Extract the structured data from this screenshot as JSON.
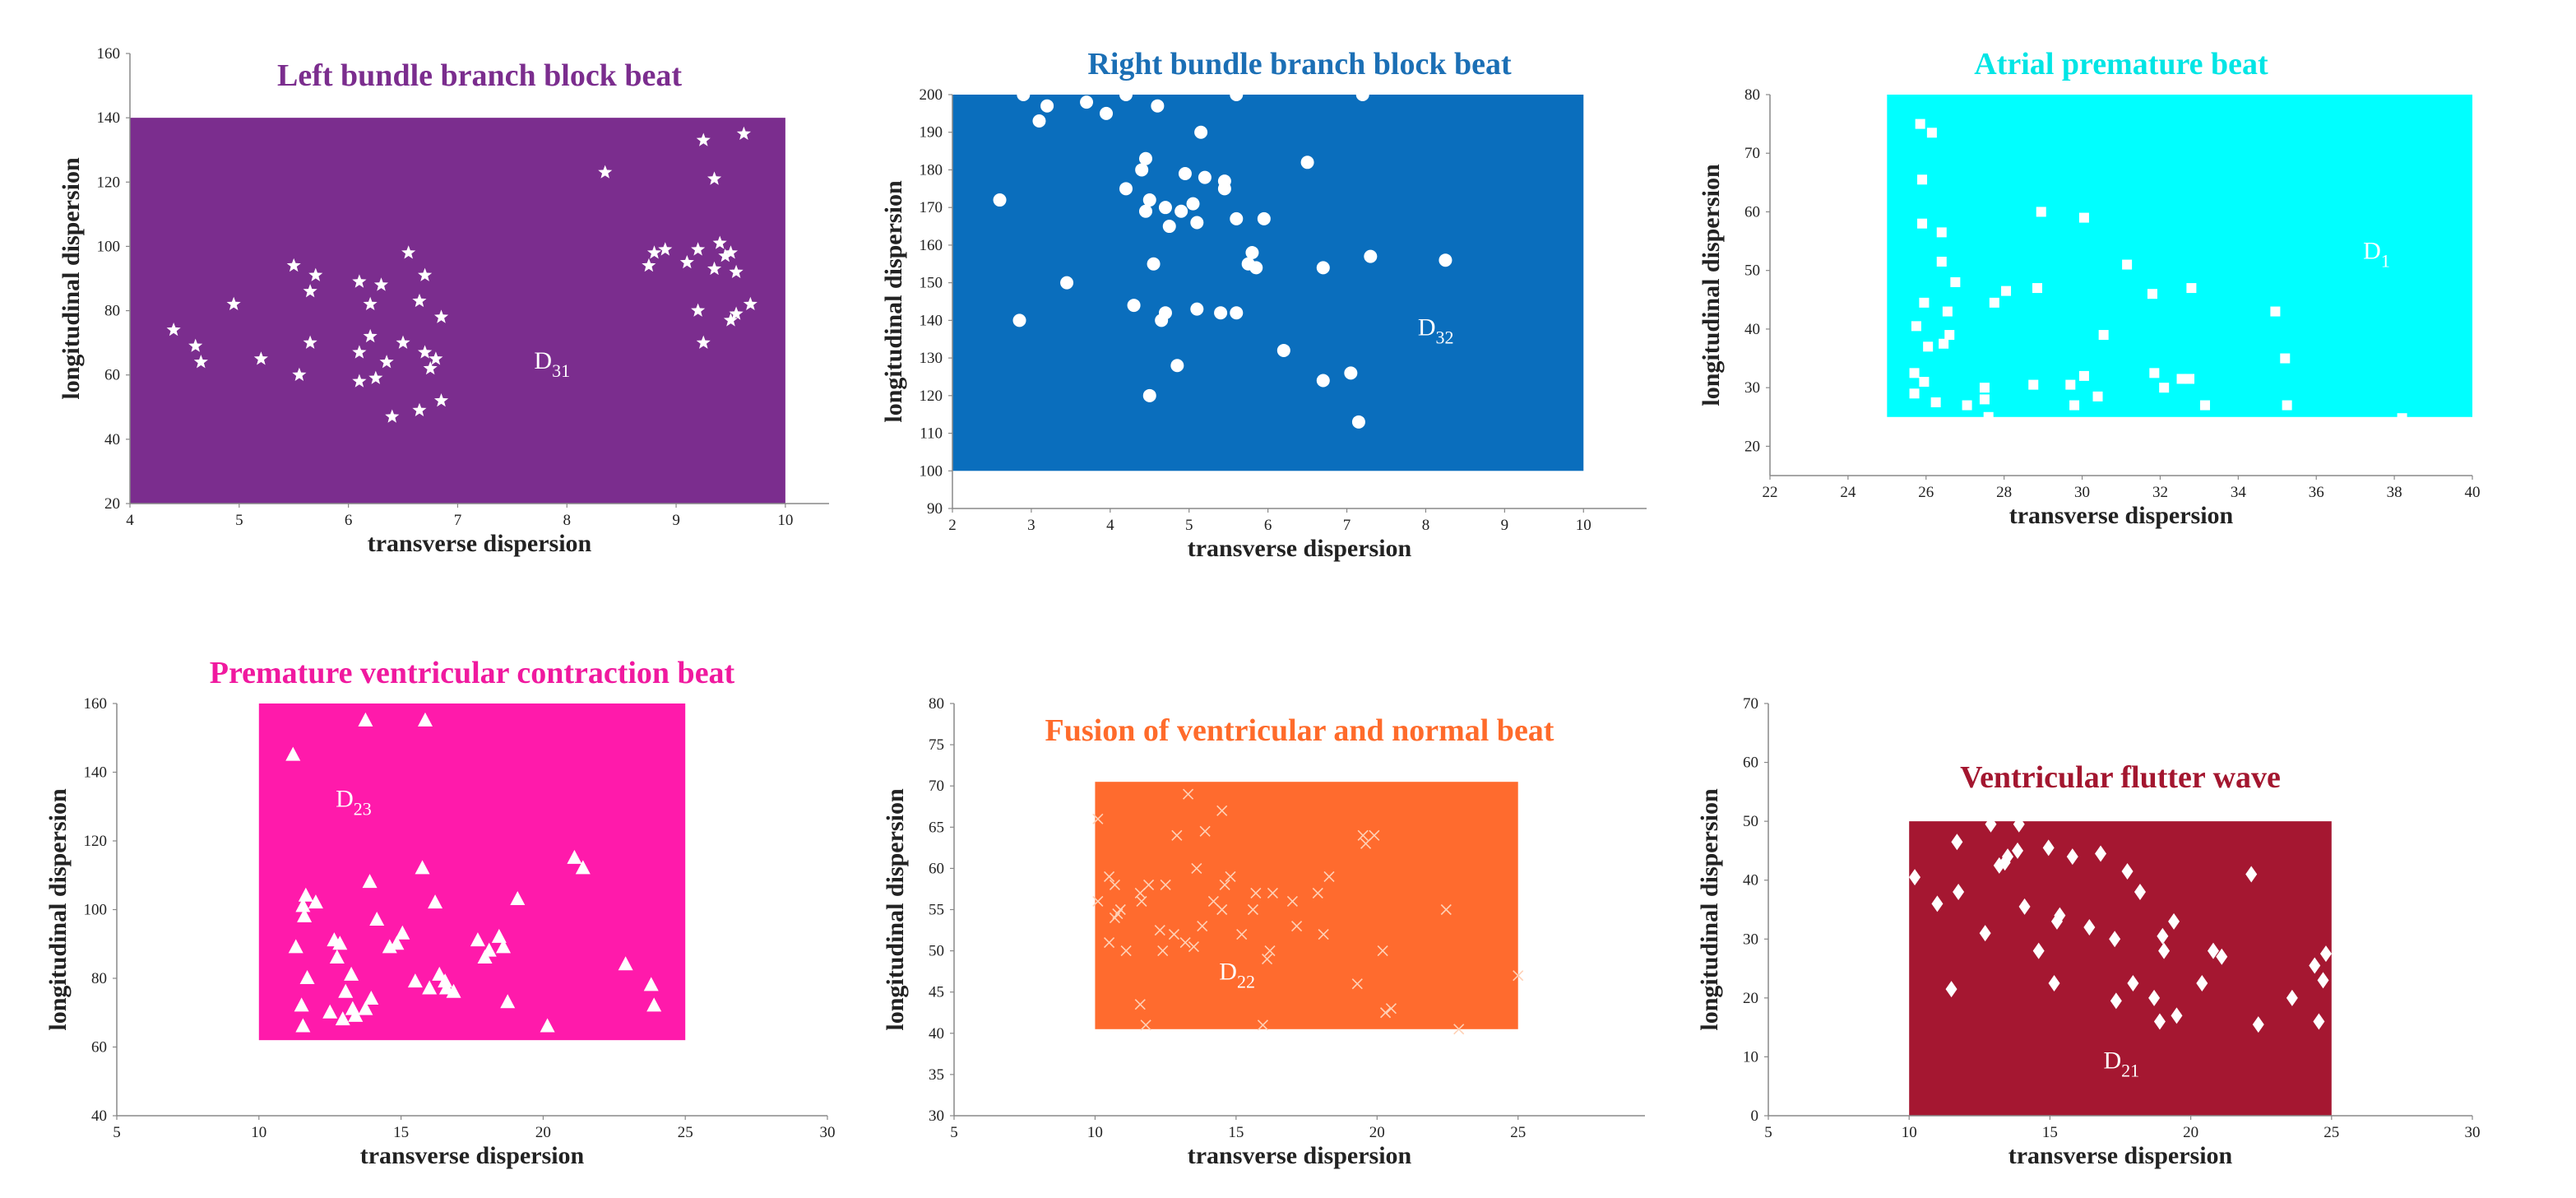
{
  "chart_data": [
    {
      "type": "scatter",
      "title": "Left bundle branch block beat",
      "title_color": "#7B2D8E",
      "xlabel": "transverse dispersion",
      "ylabel": "longitudinal dispersion",
      "xlim": [
        4,
        10.4
      ],
      "ylim": [
        20,
        160
      ],
      "xticks": [
        4,
        5,
        6,
        7,
        8,
        9,
        10
      ],
      "yticks": [
        20,
        40,
        60,
        80,
        100,
        120,
        140,
        160
      ],
      "region": {
        "x": [
          4,
          10
        ],
        "y": [
          20,
          140
        ],
        "fill": "#7B2D8E",
        "label_main": "D",
        "label_sub": "31",
        "label_pos": [
          7.7,
          62
        ]
      },
      "marker": "star",
      "points": [
        [
          4.4,
          74
        ],
        [
          4.6,
          69
        ],
        [
          4.65,
          64
        ],
        [
          4.95,
          82
        ],
        [
          5.2,
          65
        ],
        [
          5.5,
          94
        ],
        [
          5.55,
          60
        ],
        [
          5.65,
          70
        ],
        [
          5.65,
          86
        ],
        [
          5.7,
          91
        ],
        [
          6.1,
          89
        ],
        [
          6.1,
          67
        ],
        [
          6.1,
          58
        ],
        [
          6.2,
          82
        ],
        [
          6.2,
          72
        ],
        [
          6.25,
          59
        ],
        [
          6.3,
          88
        ],
        [
          6.35,
          64
        ],
        [
          6.4,
          47
        ],
        [
          6.5,
          70
        ],
        [
          6.55,
          98
        ],
        [
          6.65,
          83
        ],
        [
          6.65,
          49
        ],
        [
          6.7,
          91
        ],
        [
          6.7,
          67
        ],
        [
          6.75,
          62
        ],
        [
          6.8,
          65
        ],
        [
          6.85,
          78
        ],
        [
          6.85,
          52
        ],
        [
          8.35,
          123
        ],
        [
          8.75,
          94
        ],
        [
          8.8,
          98
        ],
        [
          8.9,
          99
        ],
        [
          9.1,
          95
        ],
        [
          9.2,
          99
        ],
        [
          9.2,
          80
        ],
        [
          9.25,
          70
        ],
        [
          9.25,
          133
        ],
        [
          9.35,
          121
        ],
        [
          9.35,
          93
        ],
        [
          9.4,
          101
        ],
        [
          9.45,
          97
        ],
        [
          9.5,
          98
        ],
        [
          9.5,
          77
        ],
        [
          9.55,
          92
        ],
        [
          9.55,
          79
        ],
        [
          9.62,
          135
        ],
        [
          9.68,
          82
        ]
      ]
    },
    {
      "type": "scatter",
      "title": "Right bundle branch block beat",
      "title_color": "#1B6FB5",
      "xlabel": "transverse dispersion",
      "ylabel": "longitudinal dispersion",
      "xlim": [
        2,
        10.8
      ],
      "ylim": [
        90,
        200
      ],
      "xticks": [
        2,
        3,
        4,
        5,
        6,
        7,
        8,
        9,
        10
      ],
      "yticks": [
        90,
        100,
        110,
        120,
        130,
        140,
        150,
        160,
        170,
        180,
        190,
        200
      ],
      "region": {
        "x": [
          2,
          10
        ],
        "y": [
          100,
          200
        ],
        "fill": "#0A6EBD",
        "label_main": "D",
        "label_sub": "32",
        "label_pos": [
          7.9,
          136
        ]
      },
      "marker": "circle",
      "points": [
        [
          2.6,
          172
        ],
        [
          2.85,
          140
        ],
        [
          2.9,
          200
        ],
        [
          3.1,
          193
        ],
        [
          3.2,
          197
        ],
        [
          3.45,
          150
        ],
        [
          3.7,
          198
        ],
        [
          3.95,
          195
        ],
        [
          4.2,
          175
        ],
        [
          4.2,
          200
        ],
        [
          4.3,
          144
        ],
        [
          4.4,
          180
        ],
        [
          4.45,
          183
        ],
        [
          4.45,
          169
        ],
        [
          4.5,
          172
        ],
        [
          4.5,
          120
        ],
        [
          4.55,
          155
        ],
        [
          4.6,
          197
        ],
        [
          4.65,
          140
        ],
        [
          4.7,
          170
        ],
        [
          4.7,
          142
        ],
        [
          4.75,
          165
        ],
        [
          4.85,
          128
        ],
        [
          4.9,
          169
        ],
        [
          4.95,
          179
        ],
        [
          5.05,
          171
        ],
        [
          5.1,
          166
        ],
        [
          5.1,
          143
        ],
        [
          5.15,
          190
        ],
        [
          5.2,
          178
        ],
        [
          5.4,
          142
        ],
        [
          5.45,
          177
        ],
        [
          5.45,
          175
        ],
        [
          5.6,
          142
        ],
        [
          5.6,
          167
        ],
        [
          5.6,
          200
        ],
        [
          5.75,
          155
        ],
        [
          5.8,
          158
        ],
        [
          5.85,
          154
        ],
        [
          5.95,
          167
        ],
        [
          6.2,
          132
        ],
        [
          6.5,
          182
        ],
        [
          6.7,
          154
        ],
        [
          6.7,
          124
        ],
        [
          7.05,
          126
        ],
        [
          7.15,
          113
        ],
        [
          7.2,
          200
        ],
        [
          7.3,
          157
        ],
        [
          8.25,
          156
        ]
      ]
    },
    {
      "type": "scatter",
      "title": "Atrial premature beat",
      "title_color": "#00E5E5",
      "xlabel": "transverse dispersion",
      "ylabel": "longitudinal dispersion",
      "xlim": [
        22,
        40
      ],
      "ylim": [
        15,
        80
      ],
      "xticks": [
        22,
        24,
        26,
        28,
        30,
        32,
        34,
        36,
        38,
        40
      ],
      "yticks": [
        20,
        30,
        40,
        50,
        60,
        70,
        80
      ],
      "region": {
        "x": [
          25,
          40
        ],
        "y": [
          25,
          80
        ],
        "fill": "#00FFFF",
        "label_main": "D",
        "label_sub": "1",
        "label_pos": [
          37.2,
          52
        ]
      },
      "marker": "square",
      "points": [
        [
          25.7,
          32.5
        ],
        [
          25.7,
          29
        ],
        [
          25.75,
          40.5
        ],
        [
          25.85,
          75
        ],
        [
          25.9,
          65.5
        ],
        [
          25.9,
          58
        ],
        [
          25.95,
          44.5
        ],
        [
          25.95,
          31
        ],
        [
          26.05,
          37
        ],
        [
          26.15,
          73.5
        ],
        [
          26.25,
          27.5
        ],
        [
          26.4,
          51.5
        ],
        [
          26.4,
          56.5
        ],
        [
          26.45,
          37.5
        ],
        [
          26.55,
          43
        ],
        [
          26.6,
          39
        ],
        [
          26.75,
          48
        ],
        [
          27.05,
          27
        ],
        [
          27.5,
          30
        ],
        [
          27.5,
          28
        ],
        [
          27.6,
          25
        ],
        [
          27.75,
          44.5
        ],
        [
          28.05,
          46.5
        ],
        [
          28.75,
          30.5
        ],
        [
          28.85,
          47
        ],
        [
          28.95,
          60
        ],
        [
          29.7,
          30.5
        ],
        [
          29.8,
          27
        ],
        [
          30.05,
          32
        ],
        [
          30.05,
          59
        ],
        [
          30.4,
          28.5
        ],
        [
          30.55,
          39
        ],
        [
          31.15,
          51
        ],
        [
          31.8,
          46
        ],
        [
          31.85,
          32.5
        ],
        [
          32.1,
          30
        ],
        [
          32.55,
          31.5
        ],
        [
          32.75,
          31.5
        ],
        [
          32.8,
          47
        ],
        [
          33.15,
          27
        ],
        [
          34.95,
          43
        ],
        [
          35.2,
          35
        ],
        [
          35.25,
          27
        ],
        [
          38.2,
          24.8
        ]
      ]
    },
    {
      "type": "scatter",
      "title": "Premature ventricular contraction beat",
      "title_color": "#F0199F",
      "xlabel": "transverse dispersion",
      "ylabel": "longitudinal dispersion",
      "xlim": [
        5,
        30
      ],
      "ylim": [
        40,
        160
      ],
      "xticks": [
        5,
        10,
        15,
        20,
        25,
        30
      ],
      "yticks": [
        40,
        60,
        80,
        100,
        120,
        140,
        160
      ],
      "region": {
        "x": [
          10,
          25
        ],
        "y": [
          62,
          160
        ],
        "fill": "#FF1AAB",
        "label_main": "D",
        "label_sub": "23",
        "label_pos": [
          12.7,
          130
        ]
      },
      "marker": "triangle",
      "points": [
        [
          11.2,
          145
        ],
        [
          11.3,
          89
        ],
        [
          11.5,
          72
        ],
        [
          11.55,
          66
        ],
        [
          11.55,
          101
        ],
        [
          11.6,
          98
        ],
        [
          11.65,
          104
        ],
        [
          11.7,
          80
        ],
        [
          12.0,
          102
        ],
        [
          12.5,
          70
        ],
        [
          12.65,
          91
        ],
        [
          12.75,
          86
        ],
        [
          12.85,
          90
        ],
        [
          12.95,
          68
        ],
        [
          13.05,
          76
        ],
        [
          13.25,
          81
        ],
        [
          13.3,
          71
        ],
        [
          13.4,
          69
        ],
        [
          13.75,
          71
        ],
        [
          13.75,
          155
        ],
        [
          13.9,
          108
        ],
        [
          13.95,
          74
        ],
        [
          14.15,
          97
        ],
        [
          14.6,
          89
        ],
        [
          14.85,
          90
        ],
        [
          15.05,
          93
        ],
        [
          15.5,
          79
        ],
        [
          15.75,
          112
        ],
        [
          15.85,
          155
        ],
        [
          16.0,
          77
        ],
        [
          16.2,
          102
        ],
        [
          16.35,
          81
        ],
        [
          16.55,
          79
        ],
        [
          16.6,
          77
        ],
        [
          16.85,
          76
        ],
        [
          17.7,
          91
        ],
        [
          17.95,
          86
        ],
        [
          18.1,
          88
        ],
        [
          18.45,
          92
        ],
        [
          18.6,
          89
        ],
        [
          18.75,
          73
        ],
        [
          19.1,
          103
        ],
        [
          20.15,
          66
        ],
        [
          21.1,
          115
        ],
        [
          21.4,
          112
        ],
        [
          22.9,
          84
        ],
        [
          23.8,
          78
        ],
        [
          23.9,
          72
        ]
      ]
    },
    {
      "type": "scatter",
      "title": "Fusion of ventricular and normal beat",
      "title_color": "#FF6B2B",
      "xlabel": "transverse dispersion",
      "ylabel": "longitudinal dispersion",
      "xlim": [
        5,
        29.5
      ],
      "ylim": [
        30,
        80
      ],
      "xticks": [
        5,
        10,
        15,
        20,
        25
      ],
      "yticks": [
        30,
        35,
        40,
        45,
        50,
        55,
        60,
        65,
        70,
        75,
        80
      ],
      "region": {
        "x": [
          10,
          25
        ],
        "y": [
          40.5,
          70.5
        ],
        "fill": "#FF6B2E",
        "label_main": "D",
        "label_sub": "22",
        "label_pos": [
          14.4,
          46.5
        ]
      },
      "marker": "cross",
      "points": [
        [
          10.1,
          66
        ],
        [
          10.1,
          56
        ],
        [
          10.5,
          59
        ],
        [
          10.5,
          51
        ],
        [
          10.7,
          58
        ],
        [
          10.7,
          54
        ],
        [
          10.8,
          54.5
        ],
        [
          10.9,
          55
        ],
        [
          11.1,
          50
        ],
        [
          11.6,
          43.5
        ],
        [
          11.6,
          57
        ],
        [
          11.65,
          56
        ],
        [
          11.8,
          41
        ],
        [
          11.9,
          58
        ],
        [
          12.3,
          52.5
        ],
        [
          12.4,
          50
        ],
        [
          12.5,
          58
        ],
        [
          12.8,
          52
        ],
        [
          12.9,
          64
        ],
        [
          13.2,
          51
        ],
        [
          13.3,
          69
        ],
        [
          13.5,
          50.5
        ],
        [
          13.6,
          60
        ],
        [
          13.8,
          53
        ],
        [
          13.9,
          64.5
        ],
        [
          14.2,
          56
        ],
        [
          14.5,
          55
        ],
        [
          14.5,
          67
        ],
        [
          14.6,
          58
        ],
        [
          14.8,
          59
        ],
        [
          15.2,
          52
        ],
        [
          15.6,
          55
        ],
        [
          15.7,
          57
        ],
        [
          15.95,
          41
        ],
        [
          16.1,
          49
        ],
        [
          16.2,
          50
        ],
        [
          16.3,
          57
        ],
        [
          17.0,
          56
        ],
        [
          17.15,
          53
        ],
        [
          17.9,
          57
        ],
        [
          18.1,
          52
        ],
        [
          18.3,
          59
        ],
        [
          19.3,
          46
        ],
        [
          19.5,
          64
        ],
        [
          19.6,
          63
        ],
        [
          19.9,
          64
        ],
        [
          20.2,
          50
        ],
        [
          20.3,
          42.5
        ],
        [
          20.5,
          43
        ],
        [
          22.45,
          55
        ],
        [
          22.9,
          40.5
        ],
        [
          25.0,
          47
        ]
      ]
    },
    {
      "type": "scatter",
      "title": "Ventricular flutter wave",
      "title_color": "#A3162F",
      "xlabel": "transverse dispersion",
      "ylabel": "longitudinal dispersion",
      "xlim": [
        5,
        30
      ],
      "ylim": [
        0,
        70
      ],
      "xticks": [
        5,
        10,
        15,
        20,
        25,
        30
      ],
      "yticks": [
        0,
        10,
        20,
        30,
        40,
        50,
        60,
        70
      ],
      "region": {
        "x": [
          10,
          25
        ],
        "y": [
          0,
          50
        ],
        "fill": "#A51731",
        "label_main": "D",
        "label_sub": "21",
        "label_pos": [
          16.9,
          8
        ]
      },
      "marker": "diamond",
      "points": [
        [
          10.2,
          40.5
        ],
        [
          11.0,
          36
        ],
        [
          11.5,
          21.5
        ],
        [
          11.7,
          46.5
        ],
        [
          11.75,
          38
        ],
        [
          12.7,
          31
        ],
        [
          12.9,
          49.5
        ],
        [
          13.2,
          42.5
        ],
        [
          13.4,
          43
        ],
        [
          13.5,
          44
        ],
        [
          13.85,
          45
        ],
        [
          13.9,
          49.5
        ],
        [
          14.1,
          35.5
        ],
        [
          14.6,
          28
        ],
        [
          14.95,
          45.5
        ],
        [
          15.15,
          22.5
        ],
        [
          15.25,
          33
        ],
        [
          15.35,
          34
        ],
        [
          15.8,
          44
        ],
        [
          16.4,
          32
        ],
        [
          16.8,
          44.5
        ],
        [
          17.3,
          30
        ],
        [
          17.35,
          19.5
        ],
        [
          17.75,
          41.5
        ],
        [
          17.95,
          22.5
        ],
        [
          18.2,
          38
        ],
        [
          18.7,
          20
        ],
        [
          18.9,
          16
        ],
        [
          19.0,
          30.5
        ],
        [
          19.05,
          28
        ],
        [
          19.4,
          33
        ],
        [
          19.5,
          17
        ],
        [
          20.4,
          22.5
        ],
        [
          20.8,
          28
        ],
        [
          21.1,
          27
        ],
        [
          22.15,
          41
        ],
        [
          22.4,
          15.5
        ],
        [
          23.6,
          20
        ],
        [
          24.4,
          25.5
        ],
        [
          24.55,
          16
        ],
        [
          24.7,
          23
        ],
        [
          24.8,
          27.5
        ],
        [
          25.3,
          25
        ]
      ]
    }
  ]
}
